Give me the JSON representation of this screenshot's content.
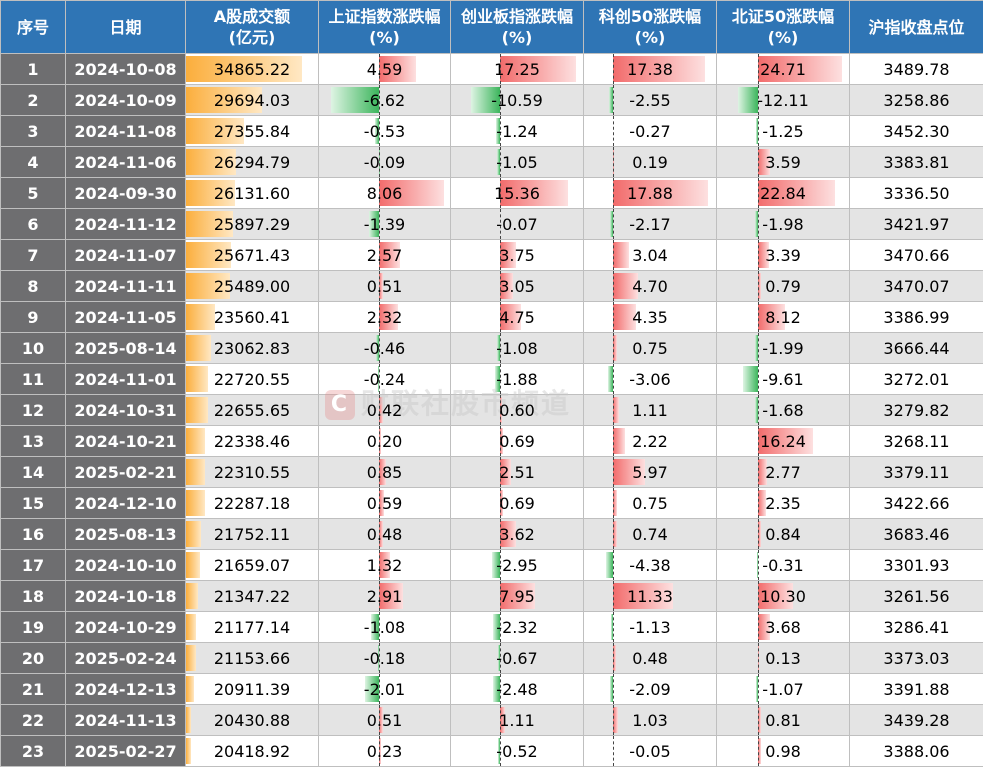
{
  "headers": {
    "idx": "序号",
    "date": "日期",
    "vol": [
      "A股成交额",
      "(亿元)"
    ],
    "sh": [
      "上证指数涨跌幅",
      "(%)"
    ],
    "cy": [
      "创业板指涨跌幅",
      "(%)"
    ],
    "kc": [
      "科创50涨跌幅",
      "(%)"
    ],
    "bz": [
      "北证50涨跌幅",
      "(%)"
    ],
    "cl": "沪指收盘点位"
  },
  "rows": [
    {
      "idx": "1",
      "date": "2024-10-08",
      "vol": "34865.22",
      "sh": "4.59",
      "cy": "17.25",
      "kc": "17.38",
      "bz": "24.71",
      "cl": "3489.78"
    },
    {
      "idx": "2",
      "date": "2024-10-09",
      "vol": "29694.03",
      "sh": "-6.62",
      "cy": "-10.59",
      "kc": "-2.55",
      "bz": "-12.11",
      "cl": "3258.86"
    },
    {
      "idx": "3",
      "date": "2024-11-08",
      "vol": "27355.84",
      "sh": "-0.53",
      "cy": "-1.24",
      "kc": "-0.27",
      "bz": "-1.25",
      "cl": "3452.30"
    },
    {
      "idx": "4",
      "date": "2024-11-06",
      "vol": "26294.79",
      "sh": "-0.09",
      "cy": "-1.05",
      "kc": "0.19",
      "bz": "3.59",
      "cl": "3383.81"
    },
    {
      "idx": "5",
      "date": "2024-09-30",
      "vol": "26131.60",
      "sh": "8.06",
      "cy": "15.36",
      "kc": "17.88",
      "bz": "22.84",
      "cl": "3336.50"
    },
    {
      "idx": "6",
      "date": "2024-11-12",
      "vol": "25897.29",
      "sh": "-1.39",
      "cy": "-0.07",
      "kc": "-2.17",
      "bz": "-1.98",
      "cl": "3421.97"
    },
    {
      "idx": "7",
      "date": "2024-11-07",
      "vol": "25671.43",
      "sh": "2.57",
      "cy": "3.75",
      "kc": "3.04",
      "bz": "3.39",
      "cl": "3470.66"
    },
    {
      "idx": "8",
      "date": "2024-11-11",
      "vol": "25489.00",
      "sh": "0.51",
      "cy": "3.05",
      "kc": "4.70",
      "bz": "0.79",
      "cl": "3470.07"
    },
    {
      "idx": "9",
      "date": "2024-11-05",
      "vol": "23560.41",
      "sh": "2.32",
      "cy": "4.75",
      "kc": "4.35",
      "bz": "8.12",
      "cl": "3386.99"
    },
    {
      "idx": "10",
      "date": "2025-08-14",
      "vol": "23062.83",
      "sh": "-0.46",
      "cy": "-1.08",
      "kc": "0.75",
      "bz": "-1.99",
      "cl": "3666.44"
    },
    {
      "idx": "11",
      "date": "2024-11-01",
      "vol": "22720.55",
      "sh": "-0.24",
      "cy": "-1.88",
      "kc": "-3.06",
      "bz": "-9.61",
      "cl": "3272.01"
    },
    {
      "idx": "12",
      "date": "2024-10-31",
      "vol": "22655.65",
      "sh": "0.42",
      "cy": "0.60",
      "kc": "1.11",
      "bz": "-1.68",
      "cl": "3279.82"
    },
    {
      "idx": "13",
      "date": "2024-10-21",
      "vol": "22338.46",
      "sh": "0.20",
      "cy": "0.69",
      "kc": "2.22",
      "bz": "16.24",
      "cl": "3268.11"
    },
    {
      "idx": "14",
      "date": "2025-02-21",
      "vol": "22310.55",
      "sh": "0.85",
      "cy": "2.51",
      "kc": "5.97",
      "bz": "2.77",
      "cl": "3379.11"
    },
    {
      "idx": "15",
      "date": "2024-12-10",
      "vol": "22287.18",
      "sh": "0.59",
      "cy": "0.69",
      "kc": "0.75",
      "bz": "2.35",
      "cl": "3422.66"
    },
    {
      "idx": "16",
      "date": "2025-08-13",
      "vol": "21752.11",
      "sh": "0.48",
      "cy": "3.62",
      "kc": "0.74",
      "bz": "0.84",
      "cl": "3683.46"
    },
    {
      "idx": "17",
      "date": "2024-10-10",
      "vol": "21659.07",
      "sh": "1.32",
      "cy": "-2.95",
      "kc": "-4.38",
      "bz": "-0.31",
      "cl": "3301.93"
    },
    {
      "idx": "18",
      "date": "2024-10-18",
      "vol": "21347.22",
      "sh": "2.91",
      "cy": "7.95",
      "kc": "11.33",
      "bz": "10.30",
      "cl": "3261.56"
    },
    {
      "idx": "19",
      "date": "2024-10-29",
      "vol": "21177.14",
      "sh": "-1.08",
      "cy": "-2.32",
      "kc": "-1.13",
      "bz": "3.68",
      "cl": "3286.41"
    },
    {
      "idx": "20",
      "date": "2025-02-24",
      "vol": "21153.66",
      "sh": "-0.18",
      "cy": "-0.67",
      "kc": "0.48",
      "bz": "0.13",
      "cl": "3373.03"
    },
    {
      "idx": "21",
      "date": "2024-12-13",
      "vol": "20911.39",
      "sh": "-2.01",
      "cy": "-2.48",
      "kc": "-2.09",
      "bz": "-1.07",
      "cl": "3391.88"
    },
    {
      "idx": "22",
      "date": "2024-11-13",
      "vol": "20430.88",
      "sh": "0.51",
      "cy": "1.11",
      "kc": "1.03",
      "bz": "0.81",
      "cl": "3439.28"
    },
    {
      "idx": "23",
      "date": "2025-02-27",
      "vol": "20418.92",
      "sh": "0.23",
      "cy": "-0.52",
      "kc": "-0.05",
      "bz": "0.98",
      "cl": "3388.06"
    }
  ],
  "watermark": {
    "logo": "C",
    "text": "财联社股市频道"
  },
  "colors": {
    "header_bg": "#2f75b5",
    "index_bg": "#6e6e70",
    "volume_bar": "#fbae3c",
    "positive_bar": "#f26b6b",
    "negative_bar": "#3cb55c",
    "stripe": "#e4e4e4"
  }
}
